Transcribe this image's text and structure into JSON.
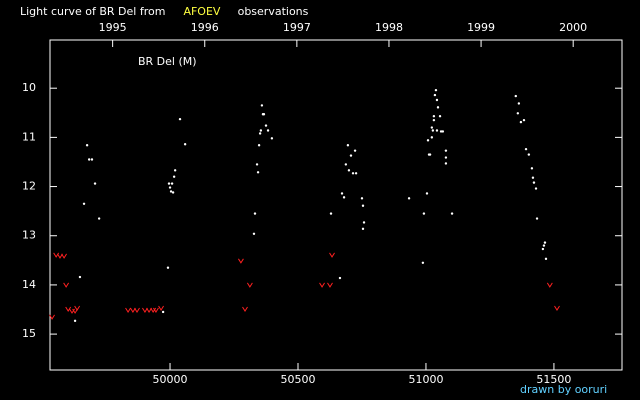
{
  "chart_data": {
    "type": "scatter",
    "title": [
      "Light curve of BR Del from",
      "AFOEV",
      "observations"
    ],
    "title_colors": [
      "#ffffff",
      "#ffff40",
      "#ffffff"
    ],
    "label": "BR Del (M)",
    "credit": "drawn by ooruri",
    "credit_color": "#60d0ff",
    "xlim": [
      49531,
      51766
    ],
    "xticks": [
      50000,
      50500,
      51000,
      51500
    ],
    "x2lim": [
      1994.32,
      2000.53
    ],
    "x2ticks": [
      1995,
      1996,
      1997,
      1998,
      1999,
      2000
    ],
    "ylim": [
      15.73,
      9.02
    ],
    "yticks": [
      10,
      11,
      12,
      13,
      14,
      15
    ],
    "series": [
      {
        "color": "#ffffff",
        "marker": "dot",
        "x": [
          49648,
          49664,
          49676,
          49684,
          49695,
          49707,
          49723,
          49629,
          49992,
          49996,
          50000,
          50004,
          50008,
          50012,
          50016,
          50020,
          50039,
          50059,
          49973,
          50332,
          50328,
          50340,
          50344,
          50348,
          50352,
          50359,
          50363,
          50367,
          50375,
          50383,
          50398,
          50355,
          50629,
          50664,
          50672,
          50680,
          50687,
          50695,
          50699,
          50707,
          50715,
          50723,
          50727,
          50750,
          50754,
          50754,
          50758,
          50934,
          50988,
          50992,
          51004,
          51012,
          51016,
          51023,
          51027,
          51031,
          51035,
          51039,
          51043,
          51047,
          51055,
          51059,
          51043,
          51031,
          51066,
          51078,
          51078,
          51078,
          51102,
          51023,
          51008,
          51351,
          51359,
          51363,
          51371,
          51383,
          51391,
          51402,
          51414,
          51418,
          51422,
          51430,
          51434,
          51457,
          51461,
          51465,
          51469
        ],
        "y": [
          13.84,
          12.35,
          11.16,
          11.45,
          11.45,
          11.94,
          12.65,
          14.73,
          13.65,
          11.94,
          12.02,
          12.1,
          11.94,
          12.12,
          11.8,
          11.67,
          10.63,
          11.14,
          14.55,
          12.55,
          12.96,
          11.55,
          11.71,
          11.16,
          10.92,
          10.35,
          10.53,
          10.53,
          10.76,
          10.86,
          11.02,
          10.86,
          12.55,
          13.86,
          12.14,
          12.22,
          11.55,
          11.16,
          11.67,
          11.37,
          11.73,
          11.27,
          11.73,
          12.24,
          12.39,
          12.86,
          12.73,
          12.24,
          13.55,
          12.55,
          12.14,
          11.35,
          11.35,
          11.0,
          10.86,
          10.57,
          10.14,
          10.04,
          10.24,
          10.39,
          10.57,
          10.88,
          10.86,
          10.65,
          10.88,
          11.27,
          11.53,
          11.41,
          12.55,
          10.8,
          11.06,
          10.16,
          10.51,
          10.31,
          10.69,
          10.65,
          11.24,
          11.35,
          11.63,
          11.82,
          11.92,
          12.04,
          12.65,
          13.27,
          13.2,
          13.14,
          13.47
        ]
      },
      {
        "color": "#ff2020",
        "marker": "v",
        "x": [
          49539,
          49555,
          49570,
          49586,
          49594,
          49602,
          49617,
          49629,
          49637,
          49836,
          49855,
          49871,
          49902,
          49918,
          49934,
          49945,
          49965,
          50277,
          50293,
          50312,
          50594,
          50625,
          50633,
          51484,
          51512
        ],
        "y": [
          14.65,
          13.39,
          13.41,
          13.41,
          14.0,
          14.49,
          14.53,
          14.53,
          14.47,
          14.51,
          14.51,
          14.51,
          14.51,
          14.51,
          14.51,
          14.51,
          14.47,
          13.51,
          14.49,
          14.0,
          14.0,
          14.0,
          13.39,
          14.0,
          14.47
        ]
      }
    ]
  }
}
